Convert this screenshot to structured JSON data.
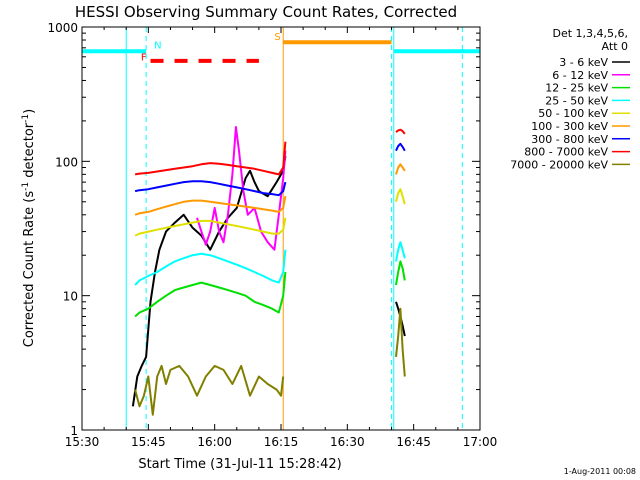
{
  "chart_data": {
    "type": "line",
    "title": "HESSI Observing Summary Count Rates, Corrected",
    "xlabel": "Start Time (31-Jul-11 15:28:42)",
    "ylabel_main": "Corrected Count Rate (s",
    "ylabel_sup1": "-1",
    "ylabel_mid": " detector",
    "ylabel_sup2": "-1",
    "ylabel_end": ")",
    "footer": "1-Aug-2011 00:08",
    "x_unit": "minutes since 15:30 UT",
    "xlim": [
      0,
      90
    ],
    "ylim": [
      1,
      1000
    ],
    "yscale": "log",
    "x_ticks": [
      {
        "value": 0,
        "label": "15:30"
      },
      {
        "value": 15,
        "label": "15:45"
      },
      {
        "value": 30,
        "label": "16:00"
      },
      {
        "value": 45,
        "label": "16:15"
      },
      {
        "value": 60,
        "label": "16:30"
      },
      {
        "value": 75,
        "label": "16:45"
      },
      {
        "value": 90,
        "label": "17:00"
      }
    ],
    "y_ticks": [
      {
        "value": 1,
        "label": "1"
      },
      {
        "value": 10,
        "label": "10"
      },
      {
        "value": 100,
        "label": "100"
      },
      {
        "value": 1000,
        "label": "1000"
      }
    ],
    "legend": {
      "placement": "top-right",
      "header_1": "Det 1,3,4,5,6,",
      "header_2": "Att 0"
    },
    "series": [
      {
        "name": "3 - 6 keV",
        "color": "#000000",
        "segments": [
          {
            "x": [
              11.5,
              12.5,
              13.5,
              14.5,
              15.5,
              16.5,
              17.5,
              19,
              21,
              23,
              25,
              27,
              29,
              31,
              33,
              35,
              37,
              38,
              39,
              40,
              42,
              44,
              45.5,
              46
            ],
            "y": [
              1.5,
              2.5,
              3,
              3.5,
              9,
              15,
              22,
              30,
              35,
              40,
              32,
              28,
              22,
              30,
              38,
              45,
              75,
              85,
              70,
              60,
              55,
              70,
              85,
              110
            ]
          },
          {
            "x": [
              71,
              71.5,
              72,
              72.5,
              73
            ],
            "y": [
              9,
              8,
              7,
              6,
              5
            ]
          }
        ]
      },
      {
        "name": "6 - 12 keV",
        "color": "#ff00ff",
        "segments": [
          {
            "x": [
              26,
              27,
              28,
              29,
              30,
              31,
              32,
              33,
              34,
              34.8,
              35.5,
              36.5,
              37.5,
              39,
              40.5,
              42,
              43.5,
              44.5,
              45.5,
              46
            ],
            "y": [
              38,
              30,
              24,
              30,
              45,
              30,
              25,
              40,
              80,
              180,
              120,
              60,
              40,
              45,
              30,
              25,
              22,
              40,
              75,
              120
            ]
          }
        ]
      },
      {
        "name": "12 - 25 keV",
        "color": "#00e000",
        "segments": [
          {
            "x": [
              12,
              13,
              15,
              17,
              19,
              21,
              23,
              25,
              27,
              29,
              31,
              33,
              35,
              37,
              39,
              41,
              43,
              44.5,
              45.5,
              46
            ],
            "y": [
              7,
              7.5,
              8,
              9,
              10,
              11,
              11.5,
              12,
              12.5,
              12,
              11.5,
              11,
              10.5,
              10,
              9,
              8.5,
              8,
              7.5,
              10,
              15
            ]
          },
          {
            "x": [
              71,
              71.5,
              72,
              72.5,
              73
            ],
            "y": [
              12,
              15,
              18,
              16,
              13
            ]
          }
        ]
      },
      {
        "name": "25 - 50 keV",
        "color": "#00ffff",
        "segments": [
          {
            "x": [
              12,
              13,
              15,
              17,
              19,
              21,
              23,
              25,
              27,
              29,
              31,
              33,
              35,
              37,
              39,
              41,
              43,
              44.5,
              45.5,
              46
            ],
            "y": [
              12,
              13,
              14,
              15,
              16.5,
              18,
              19,
              20,
              20.5,
              20,
              19,
              18,
              17,
              16,
              15,
              14,
              13,
              12.5,
              15,
              22
            ]
          },
          {
            "x": [
              71,
              71.5,
              72,
              72.5,
              73
            ],
            "y": [
              18,
              22,
              25,
              22,
              19
            ]
          }
        ]
      },
      {
        "name": "50 - 100 keV",
        "color": "#e0e000",
        "segments": [
          {
            "x": [
              12,
              13,
              15,
              17,
              19,
              21,
              23,
              25,
              27,
              29,
              31,
              33,
              35,
              37,
              39,
              41,
              43,
              44.5,
              45.5,
              46
            ],
            "y": [
              28,
              29,
              30,
              31,
              32,
              33,
              34,
              35,
              36,
              36,
              35,
              34,
              33,
              32,
              31,
              30,
              29,
              29,
              31,
              38
            ]
          },
          {
            "x": [
              71,
              71.5,
              72,
              72.5,
              73
            ],
            "y": [
              50,
              58,
              62,
              55,
              48
            ]
          }
        ]
      },
      {
        "name": "100 - 300 keV",
        "color": "#ff9900",
        "segments": [
          {
            "x": [
              12,
              13,
              15,
              17,
              19,
              21,
              23,
              25,
              27,
              29,
              31,
              33,
              35,
              37,
              39,
              41,
              43,
              44.5,
              45.5,
              46
            ],
            "y": [
              40,
              41,
              42,
              44,
              46,
              48,
              50,
              51,
              51,
              50,
              49,
              48,
              47,
              46,
              45,
              44,
              43,
              42,
              45,
              55
            ]
          },
          {
            "x": [
              71,
              71.5,
              72,
              72.5,
              73
            ],
            "y": [
              80,
              90,
              95,
              90,
              85
            ]
          }
        ]
      },
      {
        "name": "300 - 800 keV",
        "color": "#0000ff",
        "segments": [
          {
            "x": [
              12,
              13,
              15,
              17,
              19,
              21,
              23,
              25,
              27,
              29,
              31,
              33,
              35,
              37,
              39,
              41,
              43,
              44.5,
              45.5,
              46
            ],
            "y": [
              60,
              61,
              62,
              64,
              66,
              68,
              70,
              71,
              71,
              70,
              68,
              66,
              64,
              62,
              60,
              58,
              57,
              56,
              60,
              70
            ]
          },
          {
            "x": [
              71,
              71.5,
              72,
              72.5,
              73
            ],
            "y": [
              120,
              130,
              135,
              128,
              120
            ]
          }
        ]
      },
      {
        "name": "800 - 7000 keV",
        "color": "#ff0000",
        "segments": [
          {
            "x": [
              12,
              13,
              15,
              17,
              19,
              21,
              23,
              25,
              27,
              29,
              31,
              33,
              35,
              37,
              39,
              41,
              43,
              44.5,
              45.5,
              46
            ],
            "y": [
              80,
              81,
              82,
              84,
              86,
              88,
              90,
              92,
              95,
              97,
              96,
              94,
              92,
              90,
              88,
              85,
              82,
              80,
              90,
              140
            ]
          },
          {
            "x": [
              71,
              71.5,
              72,
              72.5,
              73
            ],
            "y": [
              165,
              170,
              172,
              168,
              160
            ]
          }
        ]
      },
      {
        "name": "7000 - 20000 keV",
        "color": "#808000",
        "segments": [
          {
            "x": [
              12,
              13,
              14,
              15,
              16,
              17,
              18,
              19,
              20,
              22,
              24,
              26,
              28,
              30,
              32,
              34,
              36,
              38,
              40,
              42,
              44,
              45,
              45.5
            ],
            "y": [
              2,
              1.5,
              1.8,
              2.5,
              1.3,
              2.5,
              3,
              2.2,
              2.8,
              3,
              2.5,
              1.8,
              2.5,
              3,
              2.8,
              2.2,
              3,
              1.8,
              2.5,
              2.2,
              2,
              1.8,
              2.5
            ]
          },
          {
            "x": [
              71,
              71.5,
              72,
              72.5,
              73
            ],
            "y": [
              3.5,
              5,
              8,
              4,
              2.5
            ]
          }
        ]
      }
    ],
    "vertical_lines": [
      {
        "x": 10,
        "color": "#00ffff",
        "style": "solid"
      },
      {
        "x": 45.5,
        "color": "#ff9900",
        "style": "solid"
      },
      {
        "x": 70.5,
        "color": "#00ffff",
        "style": "solid"
      },
      {
        "x": 14.5,
        "color": "#00ffff",
        "style": "dashed"
      },
      {
        "x": 70,
        "color": "#00ffff",
        "style": "dashed"
      },
      {
        "x": 86,
        "color": "#00ffff",
        "style": "dashed"
      }
    ],
    "flag_bars": [
      {
        "name": "night",
        "color": "#00ffff",
        "style": "solid",
        "y": 660,
        "x": [
          0,
          14.5
        ]
      },
      {
        "name": "night",
        "color": "#00ffff",
        "style": "solid",
        "y": 660,
        "x": [
          70.5,
          90
        ]
      },
      {
        "name": "saa",
        "color": "#ff9900",
        "style": "solid",
        "y": 770,
        "x": [
          45.5,
          70
        ]
      },
      {
        "name": "flare",
        "color": "#ff0000",
        "style": "dashed",
        "y": 560,
        "x": [
          15.5,
          40
        ]
      }
    ],
    "flag_labels": [
      {
        "text": "N",
        "color": "#00ffff",
        "x": 16.3,
        "y": 690
      },
      {
        "text": "S",
        "color": "#ff9900",
        "x": 43.5,
        "y": 800
      },
      {
        "text": "F",
        "color": "#ff0000",
        "x": 13.3,
        "y": 565
      }
    ]
  }
}
